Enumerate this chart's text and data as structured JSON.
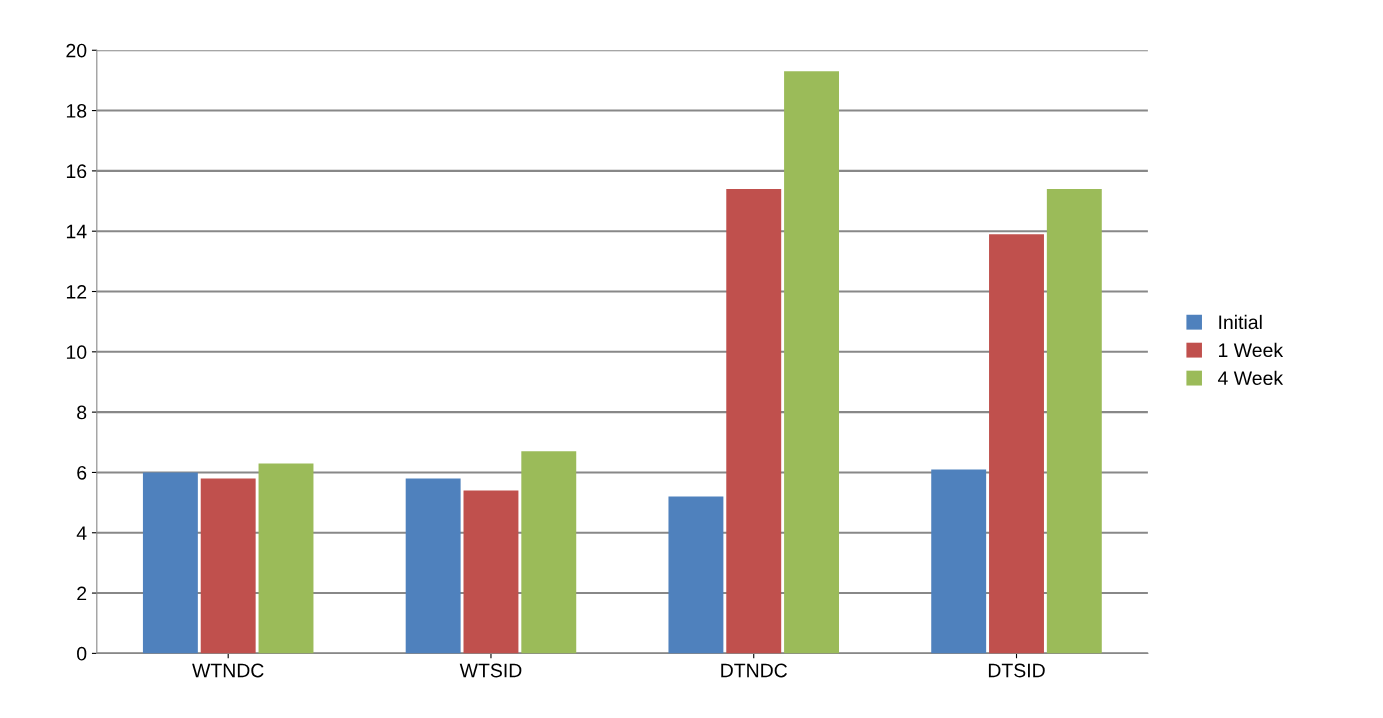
{
  "chart_data": {
    "type": "bar",
    "categories": [
      "WTNDC",
      "WTSID",
      "DTNDC",
      "DTSID"
    ],
    "series": [
      {
        "name": "Initial",
        "color": "#4f81bd",
        "values": [
          6.0,
          5.8,
          5.2,
          6.1
        ]
      },
      {
        "name": "1 Week",
        "color": "#c0504d",
        "values": [
          5.8,
          5.4,
          15.4,
          13.9
        ]
      },
      {
        "name": "4 Week",
        "color": "#9bbb59",
        "values": [
          6.3,
          6.7,
          19.3,
          15.4
        ]
      }
    ],
    "ylim": [
      0,
      20
    ],
    "yticks": [
      0,
      2,
      4,
      6,
      8,
      10,
      12,
      14,
      16,
      18,
      20
    ],
    "grid": "y",
    "legend": "right"
  }
}
